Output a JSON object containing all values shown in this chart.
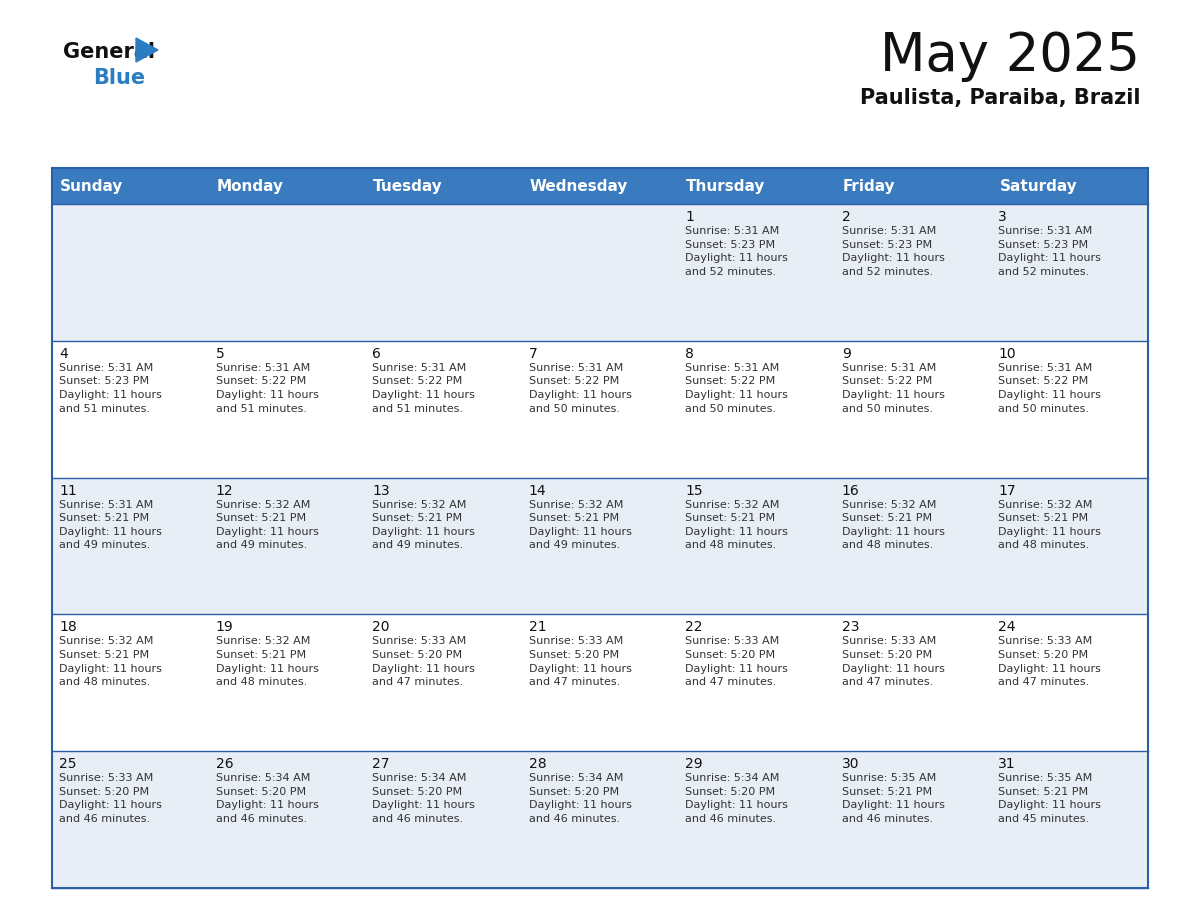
{
  "title": "May 2025",
  "subtitle": "Paulista, Paraiba, Brazil",
  "header_bg": "#3a7bbf",
  "header_text": "#ffffff",
  "days_of_week": [
    "Sunday",
    "Monday",
    "Tuesday",
    "Wednesday",
    "Thursday",
    "Friday",
    "Saturday"
  ],
  "weeks": [
    [
      {
        "day": null,
        "info": null
      },
      {
        "day": null,
        "info": null
      },
      {
        "day": null,
        "info": null
      },
      {
        "day": null,
        "info": null
      },
      {
        "day": 1,
        "info": "Sunrise: 5:31 AM\nSunset: 5:23 PM\nDaylight: 11 hours\nand 52 minutes."
      },
      {
        "day": 2,
        "info": "Sunrise: 5:31 AM\nSunset: 5:23 PM\nDaylight: 11 hours\nand 52 minutes."
      },
      {
        "day": 3,
        "info": "Sunrise: 5:31 AM\nSunset: 5:23 PM\nDaylight: 11 hours\nand 52 minutes."
      }
    ],
    [
      {
        "day": 4,
        "info": "Sunrise: 5:31 AM\nSunset: 5:23 PM\nDaylight: 11 hours\nand 51 minutes."
      },
      {
        "day": 5,
        "info": "Sunrise: 5:31 AM\nSunset: 5:22 PM\nDaylight: 11 hours\nand 51 minutes."
      },
      {
        "day": 6,
        "info": "Sunrise: 5:31 AM\nSunset: 5:22 PM\nDaylight: 11 hours\nand 51 minutes."
      },
      {
        "day": 7,
        "info": "Sunrise: 5:31 AM\nSunset: 5:22 PM\nDaylight: 11 hours\nand 50 minutes."
      },
      {
        "day": 8,
        "info": "Sunrise: 5:31 AM\nSunset: 5:22 PM\nDaylight: 11 hours\nand 50 minutes."
      },
      {
        "day": 9,
        "info": "Sunrise: 5:31 AM\nSunset: 5:22 PM\nDaylight: 11 hours\nand 50 minutes."
      },
      {
        "day": 10,
        "info": "Sunrise: 5:31 AM\nSunset: 5:22 PM\nDaylight: 11 hours\nand 50 minutes."
      }
    ],
    [
      {
        "day": 11,
        "info": "Sunrise: 5:31 AM\nSunset: 5:21 PM\nDaylight: 11 hours\nand 49 minutes."
      },
      {
        "day": 12,
        "info": "Sunrise: 5:32 AM\nSunset: 5:21 PM\nDaylight: 11 hours\nand 49 minutes."
      },
      {
        "day": 13,
        "info": "Sunrise: 5:32 AM\nSunset: 5:21 PM\nDaylight: 11 hours\nand 49 minutes."
      },
      {
        "day": 14,
        "info": "Sunrise: 5:32 AM\nSunset: 5:21 PM\nDaylight: 11 hours\nand 49 minutes."
      },
      {
        "day": 15,
        "info": "Sunrise: 5:32 AM\nSunset: 5:21 PM\nDaylight: 11 hours\nand 48 minutes."
      },
      {
        "day": 16,
        "info": "Sunrise: 5:32 AM\nSunset: 5:21 PM\nDaylight: 11 hours\nand 48 minutes."
      },
      {
        "day": 17,
        "info": "Sunrise: 5:32 AM\nSunset: 5:21 PM\nDaylight: 11 hours\nand 48 minutes."
      }
    ],
    [
      {
        "day": 18,
        "info": "Sunrise: 5:32 AM\nSunset: 5:21 PM\nDaylight: 11 hours\nand 48 minutes."
      },
      {
        "day": 19,
        "info": "Sunrise: 5:32 AM\nSunset: 5:21 PM\nDaylight: 11 hours\nand 48 minutes."
      },
      {
        "day": 20,
        "info": "Sunrise: 5:33 AM\nSunset: 5:20 PM\nDaylight: 11 hours\nand 47 minutes."
      },
      {
        "day": 21,
        "info": "Sunrise: 5:33 AM\nSunset: 5:20 PM\nDaylight: 11 hours\nand 47 minutes."
      },
      {
        "day": 22,
        "info": "Sunrise: 5:33 AM\nSunset: 5:20 PM\nDaylight: 11 hours\nand 47 minutes."
      },
      {
        "day": 23,
        "info": "Sunrise: 5:33 AM\nSunset: 5:20 PM\nDaylight: 11 hours\nand 47 minutes."
      },
      {
        "day": 24,
        "info": "Sunrise: 5:33 AM\nSunset: 5:20 PM\nDaylight: 11 hours\nand 47 minutes."
      }
    ],
    [
      {
        "day": 25,
        "info": "Sunrise: 5:33 AM\nSunset: 5:20 PM\nDaylight: 11 hours\nand 46 minutes."
      },
      {
        "day": 26,
        "info": "Sunrise: 5:34 AM\nSunset: 5:20 PM\nDaylight: 11 hours\nand 46 minutes."
      },
      {
        "day": 27,
        "info": "Sunrise: 5:34 AM\nSunset: 5:20 PM\nDaylight: 11 hours\nand 46 minutes."
      },
      {
        "day": 28,
        "info": "Sunrise: 5:34 AM\nSunset: 5:20 PM\nDaylight: 11 hours\nand 46 minutes."
      },
      {
        "day": 29,
        "info": "Sunrise: 5:34 AM\nSunset: 5:20 PM\nDaylight: 11 hours\nand 46 minutes."
      },
      {
        "day": 30,
        "info": "Sunrise: 5:35 AM\nSunset: 5:21 PM\nDaylight: 11 hours\nand 46 minutes."
      },
      {
        "day": 31,
        "info": "Sunrise: 5:35 AM\nSunset: 5:21 PM\nDaylight: 11 hours\nand 45 minutes."
      }
    ]
  ],
  "header_bg_color": "#3a7bbf",
  "header_text_color": "#ffffff",
  "row_bg_odd": "#e8eef5",
  "row_bg_even": "#ffffff",
  "text_color_dark": "#111111",
  "text_color_info": "#333333",
  "divider_color": "#2b5ea7",
  "logo_general_color": "#111111",
  "logo_blue_color": "#2a7dc0",
  "logo_triangle_color": "#2a7dc0",
  "title_fontsize": 38,
  "subtitle_fontsize": 15,
  "header_fontsize": 11,
  "day_num_fontsize": 10,
  "info_fontsize": 8
}
